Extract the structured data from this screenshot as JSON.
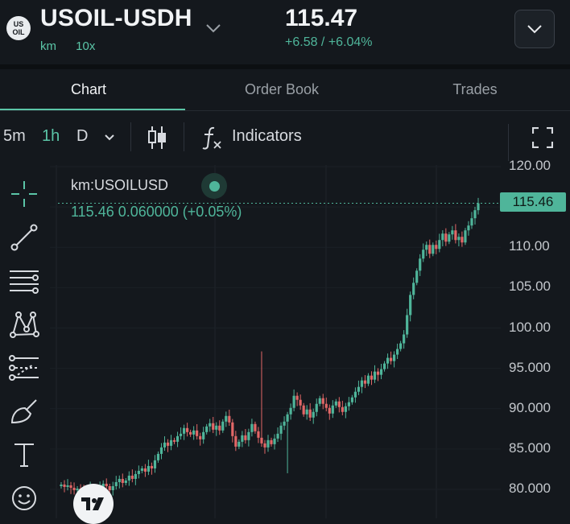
{
  "header": {
    "coin_icon_line1": "US",
    "coin_icon_line2": "OIL",
    "pair": "USOIL-USDH",
    "tag_dex": "km",
    "tag_leverage": "10x",
    "price": "115.47",
    "change": "+6.58 / +6.04%"
  },
  "tabs": [
    {
      "label": "Chart",
      "active": true
    },
    {
      "label": "Order Book",
      "active": false
    },
    {
      "label": "Trades",
      "active": false
    }
  ],
  "toolbar": {
    "interval_5m": "5m",
    "interval_1h": "1h",
    "interval_d": "D",
    "indicators_label": "Indicators"
  },
  "left_tools": [
    "crosshair-icon",
    "trend-line-icon",
    "horizontal-lines-icon",
    "pattern-icon",
    "fib-icon",
    "brush-icon",
    "text-tool-icon",
    "emoji-icon"
  ],
  "legend": {
    "symbol": "km:USOILUSD",
    "values": "115.46  0.060000 (+0.05%)"
  },
  "colors": {
    "up": "#4fb59a",
    "down": "#e26767",
    "accent": "#5bc5a7",
    "bg": "#14181d"
  },
  "chart_data": {
    "type": "candlestick",
    "y_tick_labels": [
      "120.00",
      "115.00",
      "110.00",
      "105.00",
      "100.00",
      "95.000",
      "90.000",
      "85.000",
      "80.000"
    ],
    "y_ticks": [
      120,
      115,
      110,
      105,
      100,
      95,
      90,
      85,
      80
    ],
    "ylim": [
      78.5,
      120.3
    ],
    "last_price_label": "115.46",
    "last_price": 115.46,
    "closes": [
      80.6,
      80.3,
      80.5,
      80.2,
      79.9,
      80.1,
      79.8,
      79.6,
      79.9,
      80.3,
      80.0,
      79.7,
      80.2,
      80.7,
      80.4,
      79.9,
      80.4,
      80.9,
      81.3,
      80.8,
      81.1,
      81.7,
      81.3,
      81.9,
      82.3,
      82.6,
      82.2,
      82.9,
      82.6,
      83.6,
      84.4,
      85.2,
      85.8,
      85.4,
      86.1,
      85.9,
      86.6,
      86.9,
      87.6,
      87.1,
      86.8,
      87.3,
      86.6,
      86.2,
      87.1,
      87.8,
      88.2,
      87.4,
      87.9,
      87.3,
      88.4,
      89.1,
      88.3,
      86.6,
      85.3,
      85.9,
      86.7,
      86.1,
      87.1,
      88.1,
      87.2,
      86.4,
      85.7,
      85.2,
      86.1,
      85.6,
      86.3,
      86.9,
      87.9,
      88.4,
      89.3,
      90.1,
      91.6,
      91.1,
      90.4,
      89.3,
      89.9,
      88.9,
      89.6,
      90.6,
      91.3,
      90.6,
      90.1,
      89.4,
      90.4,
      90.9,
      90.2,
      89.6,
      90.3,
      90.8,
      91.4,
      92.1,
      92.7,
      93.5,
      93.1,
      94.1,
      93.6,
      94.6,
      94.2,
      94.9,
      95.6,
      96.3,
      95.9,
      96.7,
      97.4,
      98.1,
      99.2,
      101.6,
      104.1,
      105.6,
      107.1,
      108.6,
      109.7,
      110.3,
      109.2,
      110.3,
      109.8,
      110.9,
      111.7,
      110.7,
      111.6,
      112.1,
      110.9,
      111.3,
      110.6,
      112.1,
      112.7,
      113.6,
      114.6,
      115.46
    ],
    "highs_extra": [
      {
        "index": 62,
        "high": 97.1
      }
    ],
    "lows_extra": [
      {
        "index": 70,
        "low": 82.0
      }
    ]
  }
}
